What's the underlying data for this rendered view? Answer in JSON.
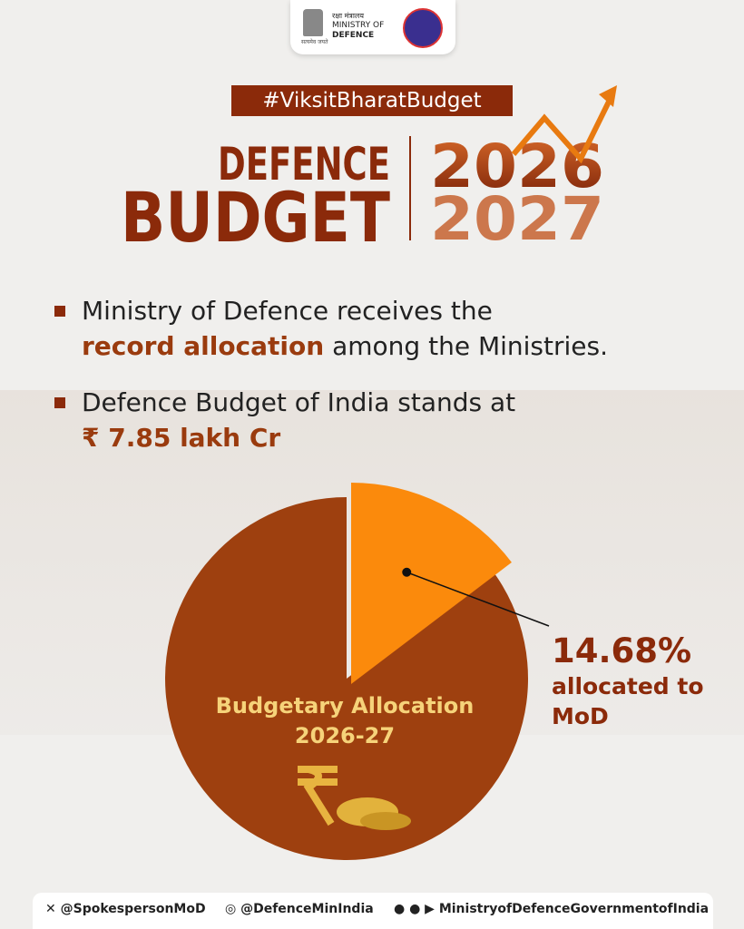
{
  "header": {
    "hindi": "रक्षा मंत्रालय",
    "line1": "MINISTRY OF",
    "line2": "DEFENCE",
    "motto": "सत्यमेव जयते"
  },
  "hashtag": "#ViksitBharatBudget",
  "title": {
    "word1": "DEFENCE",
    "word2": "BUDGET",
    "year1": "2026",
    "year2": "2027"
  },
  "bullets": [
    {
      "text": "Ministry of Defence receives the",
      "highlight": "record allocation",
      "rest": "among the Ministries."
    },
    {
      "text": "Defence Budget of India stands at",
      "highlight": "₹ 7.85 lakh Cr"
    }
  ],
  "chart_data": {
    "type": "pie",
    "categories": [
      "allocated to MoD",
      null
    ],
    "values": [
      14.68,
      85.32
    ],
    "value_labels": [
      "14.68%",
      null
    ],
    "colors": [
      "#fb8a0c",
      "#9e400f"
    ],
    "center_label": [
      "Budgetary Allocation",
      "2026-27"
    ]
  },
  "footer": {
    "x": "@SpokespersonMoD",
    "instagram": "@DefenceMinIndia",
    "other": "MinistryofDefenceGovernmentofIndia"
  }
}
